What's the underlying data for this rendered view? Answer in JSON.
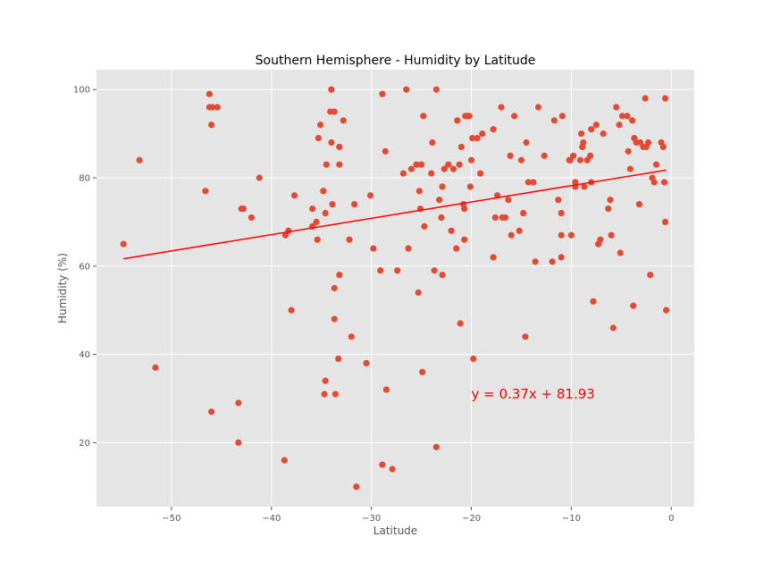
{
  "chart_data": {
    "type": "scatter",
    "title": "Southern Hemisphere - Humidity by Latitude",
    "xlabel": "Latitude",
    "ylabel": "Humidity (%)",
    "xlim": [
      -57.5,
      2.3
    ],
    "ylim": [
      5.5,
      104.5
    ],
    "xticks": [
      -50,
      -40,
      -30,
      -20,
      -10,
      0
    ],
    "yticks": [
      20,
      40,
      60,
      80,
      100
    ],
    "grid": true,
    "point_color": "#E24A33",
    "background": "#E5E5E5",
    "regression": {
      "slope": 0.37,
      "intercept": 81.93,
      "x_range": [
        -54.8,
        -0.5
      ],
      "color": "#FF0000",
      "equation_label": "y = 0.37x + 81.93",
      "label_x": -20,
      "label_y": 30
    },
    "points": [
      [
        -54.8,
        65
      ],
      [
        -53.2,
        84
      ],
      [
        -51.6,
        37
      ],
      [
        -46.6,
        77
      ],
      [
        -46.2,
        99
      ],
      [
        -46.2,
        96
      ],
      [
        -46.0,
        92
      ],
      [
        -45.9,
        96
      ],
      [
        -45.4,
        96
      ],
      [
        -46.0,
        27
      ],
      [
        -43.0,
        73
      ],
      [
        -42.8,
        73
      ],
      [
        -43.3,
        29
      ],
      [
        -43.3,
        20
      ],
      [
        -42.0,
        71
      ],
      [
        -41.2,
        80
      ],
      [
        -38.6,
        67
      ],
      [
        -38.3,
        68
      ],
      [
        -38.0,
        50
      ],
      [
        -37.7,
        76
      ],
      [
        -38.7,
        16
      ],
      [
        -35.9,
        73
      ],
      [
        -35.9,
        69
      ],
      [
        -35.5,
        70
      ],
      [
        -35.4,
        66
      ],
      [
        -35.3,
        89
      ],
      [
        -35.1,
        92
      ],
      [
        -34.8,
        77
      ],
      [
        -34.6,
        72
      ],
      [
        -34.5,
        83
      ],
      [
        -34.6,
        34
      ],
      [
        -34.7,
        31
      ],
      [
        -34.0,
        100
      ],
      [
        -34.1,
        95
      ],
      [
        -33.7,
        95
      ],
      [
        -34.0,
        88
      ],
      [
        -33.9,
        74
      ],
      [
        -33.7,
        55
      ],
      [
        -33.7,
        48
      ],
      [
        -33.6,
        31
      ],
      [
        -33.3,
        39
      ],
      [
        -33.2,
        58
      ],
      [
        -33.2,
        87
      ],
      [
        -33.2,
        83
      ],
      [
        -32.8,
        93
      ],
      [
        -32.2,
        66
      ],
      [
        -32.0,
        44
      ],
      [
        -31.7,
        74
      ],
      [
        -31.5,
        10
      ],
      [
        -30.5,
        38
      ],
      [
        -30.1,
        76
      ],
      [
        -29.8,
        64
      ],
      [
        -29.1,
        59
      ],
      [
        -28.9,
        99
      ],
      [
        -28.6,
        86
      ],
      [
        -28.9,
        15
      ],
      [
        -28.5,
        32
      ],
      [
        -27.9,
        14
      ],
      [
        -27.4,
        59
      ],
      [
        -26.8,
        81
      ],
      [
        -26.5,
        100
      ],
      [
        -26.3,
        64
      ],
      [
        -26.0,
        82
      ],
      [
        -25.5,
        83
      ],
      [
        -25.3,
        54
      ],
      [
        -25.2,
        77
      ],
      [
        -25.1,
        73
      ],
      [
        -25.0,
        83
      ],
      [
        -24.8,
        94
      ],
      [
        -24.7,
        69
      ],
      [
        -24.9,
        36
      ],
      [
        -24.0,
        81
      ],
      [
        -23.9,
        88
      ],
      [
        -23.7,
        59
      ],
      [
        -23.5,
        100
      ],
      [
        -23.5,
        19
      ],
      [
        -23.2,
        75
      ],
      [
        -23.0,
        71
      ],
      [
        -22.9,
        78
      ],
      [
        -22.9,
        58
      ],
      [
        -22.7,
        82
      ],
      [
        -22.3,
        83
      ],
      [
        -22.0,
        68
      ],
      [
        -21.8,
        82
      ],
      [
        -21.5,
        64
      ],
      [
        -21.4,
        93
      ],
      [
        -21.2,
        83
      ],
      [
        -21.1,
        47
      ],
      [
        -21.0,
        87
      ],
      [
        -20.8,
        74
      ],
      [
        -20.7,
        73
      ],
      [
        -20.7,
        66
      ],
      [
        -20.6,
        94
      ],
      [
        -20.4,
        94
      ],
      [
        -20.2,
        94
      ],
      [
        -20.1,
        78
      ],
      [
        -20.0,
        84
      ],
      [
        -19.9,
        89
      ],
      [
        -19.8,
        39
      ],
      [
        -19.4,
        89
      ],
      [
        -19.1,
        81
      ],
      [
        -18.9,
        90
      ],
      [
        -17.8,
        91
      ],
      [
        -17.8,
        62
      ],
      [
        -17.6,
        71
      ],
      [
        -17.4,
        76
      ],
      [
        -17.0,
        96
      ],
      [
        -16.9,
        71
      ],
      [
        -16.6,
        71
      ],
      [
        -16.3,
        75
      ],
      [
        -16.1,
        85
      ],
      [
        -16.0,
        67
      ],
      [
        -15.7,
        94
      ],
      [
        -15.2,
        68
      ],
      [
        -15.0,
        84
      ],
      [
        -14.8,
        72
      ],
      [
        -14.6,
        44
      ],
      [
        -14.5,
        88
      ],
      [
        -14.3,
        79
      ],
      [
        -13.8,
        79
      ],
      [
        -13.6,
        61
      ],
      [
        -13.3,
        96
      ],
      [
        -12.7,
        85
      ],
      [
        -11.9,
        61
      ],
      [
        -11.7,
        93
      ],
      [
        -11.3,
        75
      ],
      [
        -11.0,
        72
      ],
      [
        -11.0,
        67
      ],
      [
        -11.0,
        62
      ],
      [
        -10.9,
        94
      ],
      [
        -10.2,
        84
      ],
      [
        -10.1,
        84
      ],
      [
        -10.0,
        67
      ],
      [
        -9.8,
        85
      ],
      [
        -9.6,
        78
      ],
      [
        -9.6,
        79
      ],
      [
        -9.1,
        84
      ],
      [
        -9.0,
        90
      ],
      [
        -8.9,
        87
      ],
      [
        -8.8,
        88
      ],
      [
        -8.7,
        78
      ],
      [
        -8.4,
        84
      ],
      [
        -8.1,
        85
      ],
      [
        -8.0,
        79
      ],
      [
        -8.0,
        91
      ],
      [
        -7.8,
        52
      ],
      [
        -7.5,
        92
      ],
      [
        -7.3,
        65
      ],
      [
        -7.1,
        66
      ],
      [
        -6.8,
        90
      ],
      [
        -6.3,
        73
      ],
      [
        -6.1,
        75
      ],
      [
        -6.0,
        67
      ],
      [
        -5.8,
        46
      ],
      [
        -5.5,
        96
      ],
      [
        -5.2,
        92
      ],
      [
        -5.1,
        63
      ],
      [
        -4.9,
        94
      ],
      [
        -4.4,
        94
      ],
      [
        -4.3,
        86
      ],
      [
        -4.1,
        82
      ],
      [
        -3.9,
        93
      ],
      [
        -3.8,
        51
      ],
      [
        -3.7,
        89
      ],
      [
        -3.5,
        88
      ],
      [
        -3.2,
        74
      ],
      [
        -3.1,
        88
      ],
      [
        -2.8,
        87
      ],
      [
        -2.6,
        98
      ],
      [
        -2.5,
        87
      ],
      [
        -2.3,
        88
      ],
      [
        -2.1,
        58
      ],
      [
        -1.9,
        80
      ],
      [
        -1.7,
        79
      ],
      [
        -1.5,
        83
      ],
      [
        -1.0,
        88
      ],
      [
        -0.8,
        87
      ],
      [
        -0.7,
        79
      ],
      [
        -0.6,
        98
      ],
      [
        -0.6,
        70
      ],
      [
        -0.5,
        50
      ]
    ]
  }
}
